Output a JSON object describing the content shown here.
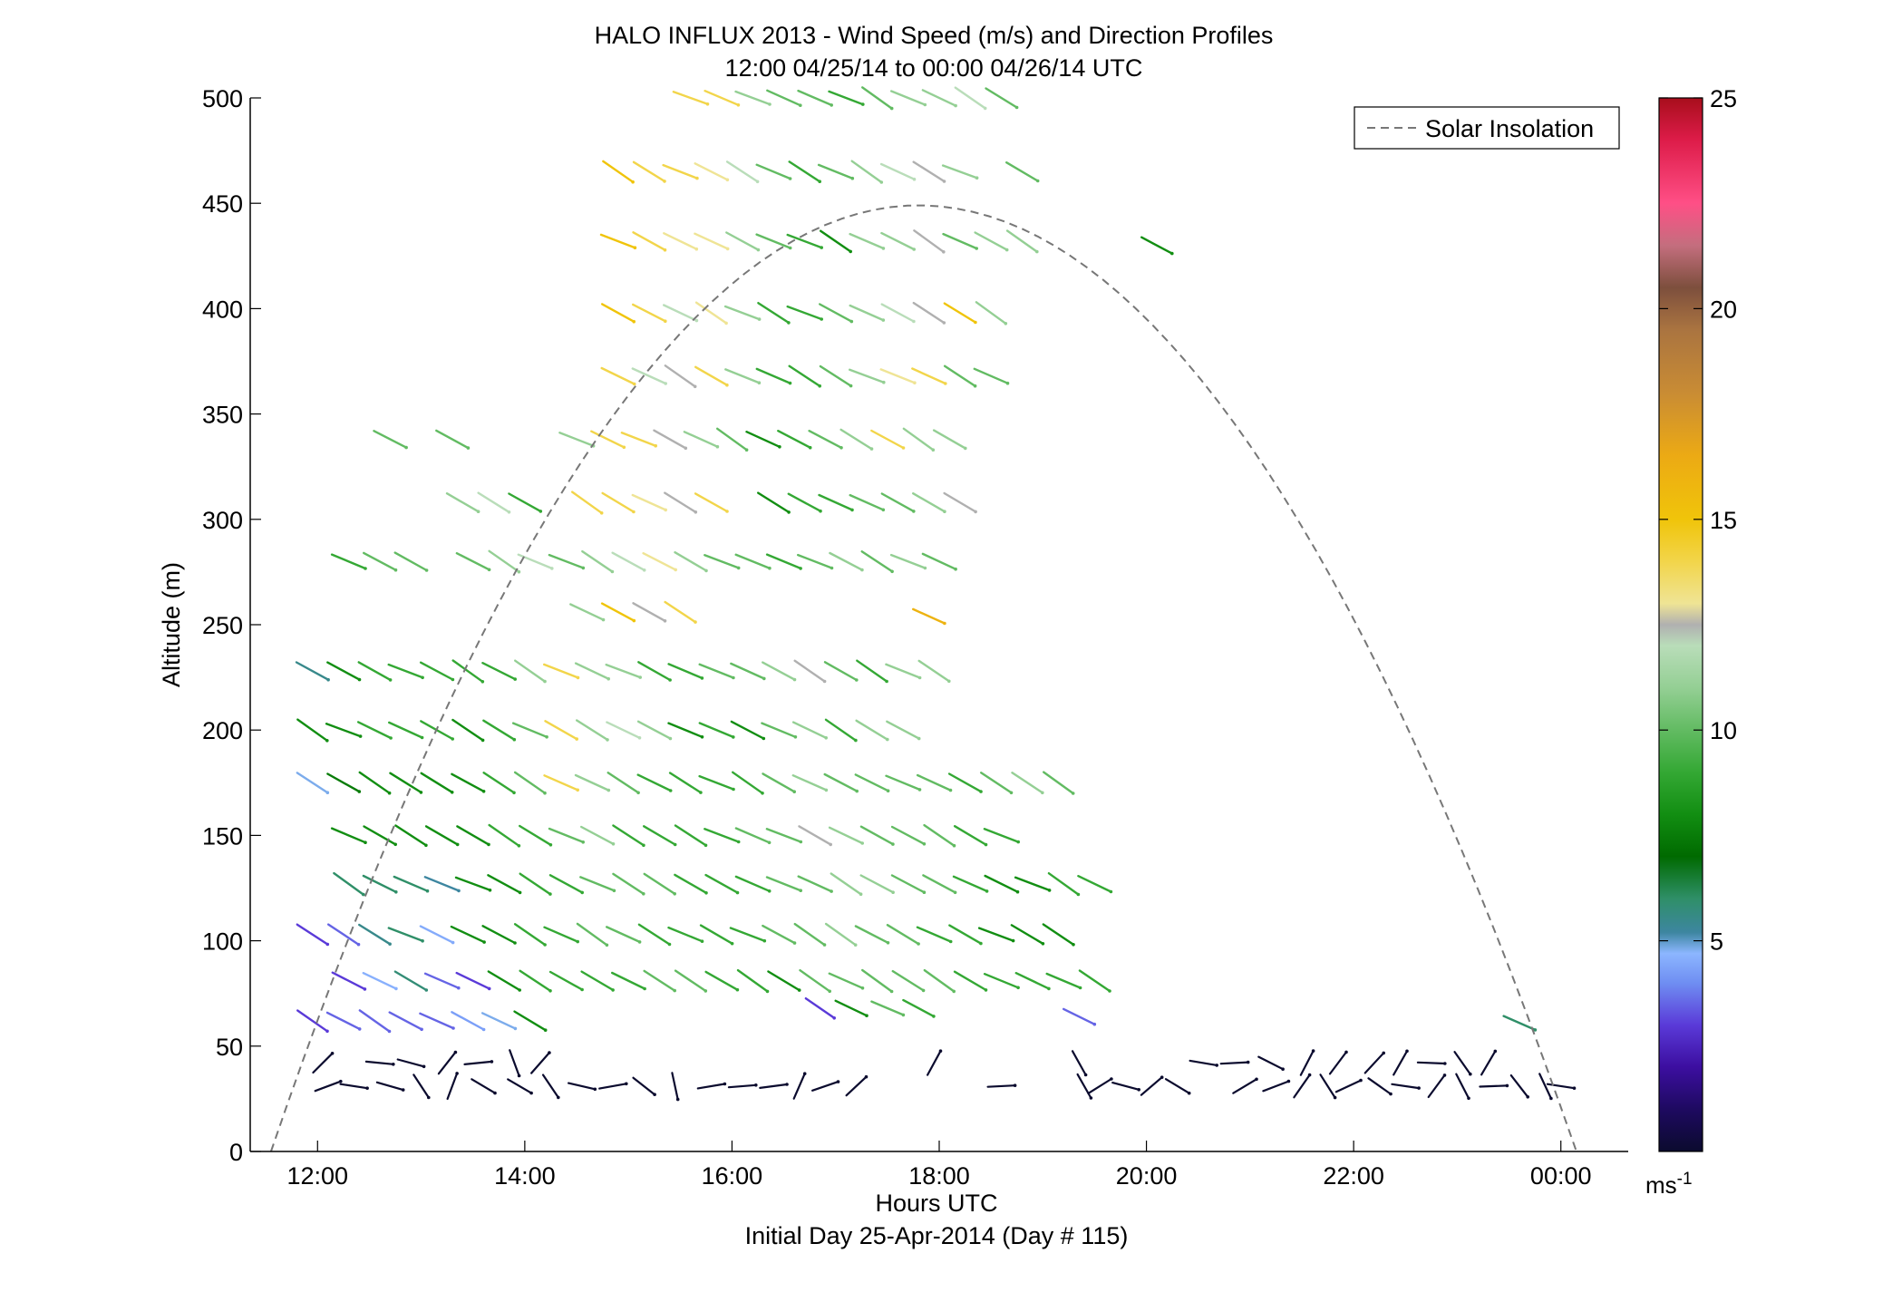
{
  "chart_data": {
    "type": "wind-barb-profile",
    "title": "HALO INFLUX 2013 - Wind Speed (m/s) and Direction Profiles",
    "subtitle": "12:00 04/25/14 to 00:00 04/26/14  UTC",
    "xlabel": "Hours UTC",
    "xlabel2": "Initial Day 25-Apr-2014 (Day # 115)",
    "ylabel": "Altitude (m)",
    "xlim": [
      11.35,
      24.65
    ],
    "ylim": [
      0,
      500
    ],
    "x_ticks": [
      {
        "v": 12,
        "label": "12:00"
      },
      {
        "v": 14,
        "label": "14:00"
      },
      {
        "v": 16,
        "label": "16:00"
      },
      {
        "v": 18,
        "label": "18:00"
      },
      {
        "v": 20,
        "label": "20:00"
      },
      {
        "v": 22,
        "label": "22:00"
      },
      {
        "v": 24,
        "label": "00:00"
      }
    ],
    "y_ticks": [
      0,
      50,
      100,
      150,
      200,
      250,
      300,
      350,
      400,
      450,
      500
    ],
    "legend": {
      "entries": [
        "Solar Insolation"
      ],
      "placement": "top-right",
      "line_style": "dashed",
      "color": "#777777"
    },
    "colorbar": {
      "ticks": [
        5,
        10,
        15,
        20,
        25
      ],
      "unit_label": "ms",
      "unit_exponent": "-1",
      "range": [
        0,
        25
      ],
      "stops": [
        {
          "v": 0,
          "c": "#0b0b2e"
        },
        {
          "v": 1,
          "c": "#1e0a60"
        },
        {
          "v": 2,
          "c": "#3c0ea0"
        },
        {
          "v": 3,
          "c": "#5a3ad8"
        },
        {
          "v": 4,
          "c": "#6f8ef2"
        },
        {
          "v": 4.7,
          "c": "#8cb6ff"
        },
        {
          "v": 5.2,
          "c": "#3d86a0"
        },
        {
          "v": 6,
          "c": "#2f8f68"
        },
        {
          "v": 7,
          "c": "#006a00"
        },
        {
          "v": 8,
          "c": "#128e12"
        },
        {
          "v": 9,
          "c": "#34a834"
        },
        {
          "v": 10,
          "c": "#62bb62"
        },
        {
          "v": 11,
          "c": "#94cf94"
        },
        {
          "v": 12,
          "c": "#b9ddb9"
        },
        {
          "v": 12.5,
          "c": "#b0b0b0"
        },
        {
          "v": 13,
          "c": "#efe495"
        },
        {
          "v": 14,
          "c": "#f2d54a"
        },
        {
          "v": 15,
          "c": "#f0c40a"
        },
        {
          "v": 16.5,
          "c": "#ecaa14"
        },
        {
          "v": 18,
          "c": "#c98c34"
        },
        {
          "v": 19.5,
          "c": "#aa7440"
        },
        {
          "v": 20.5,
          "c": "#7d4f3d"
        },
        {
          "v": 21.5,
          "c": "#c46e7e"
        },
        {
          "v": 22.5,
          "c": "#ff4f86"
        },
        {
          "v": 24,
          "c": "#dd1c49"
        },
        {
          "v": 25,
          "c": "#a80e1c"
        }
      ]
    },
    "solar_insolation": {
      "start_hour": 11.55,
      "end_hour": 24.15,
      "peak_hour": 17.8,
      "peak_altitude": 449
    },
    "upper_vectors": {
      "rows": [
        {
          "alt": 500,
          "t0": 15.6,
          "speeds": [
            14,
            14,
            11,
            10,
            10,
            9,
            10,
            11,
            11,
            12,
            10
          ]
        },
        {
          "alt": 465,
          "t0": 14.9,
          "speeds": [
            15,
            14,
            14,
            13,
            12,
            10,
            9,
            10,
            11,
            12,
            12.5,
            11,
            0,
            10
          ]
        },
        {
          "alt": 432,
          "t0": 14.9,
          "speeds": [
            15,
            14,
            13,
            13,
            11,
            10,
            9,
            8,
            11,
            11,
            12.5,
            10,
            11,
            11
          ]
        },
        {
          "alt": 398,
          "t0": 14.9,
          "speeds": [
            15,
            14,
            12,
            13,
            11,
            9,
            9,
            10,
            11,
            12,
            12.5,
            15,
            11
          ]
        },
        {
          "alt": 368,
          "t0": 14.9,
          "speeds": [
            14,
            12,
            12.5,
            14,
            11,
            9,
            9,
            10,
            11,
            13,
            14,
            10,
            10
          ]
        },
        {
          "alt": 338,
          "t0": 12.7,
          "speeds": [
            10,
            0,
            10,
            0,
            0,
            0,
            11,
            14,
            14,
            12.5,
            11,
            10,
            8,
            9,
            10,
            11,
            14,
            11,
            11
          ]
        },
        {
          "alt": 308,
          "t0": 13.4,
          "speeds": [
            11,
            12,
            9,
            0,
            14,
            14,
            13,
            12.5,
            14,
            0,
            8,
            9,
            9,
            10,
            10,
            11,
            12.5
          ]
        },
        {
          "alt": 280,
          "t0": 12.3,
          "speeds": [
            9,
            10,
            10,
            0,
            10,
            11,
            12,
            10,
            11,
            12,
            13,
            11,
            10,
            10,
            9,
            10,
            11,
            10,
            11,
            10
          ]
        },
        {
          "alt": 256,
          "t0": 14.6,
          "speeds": [
            11,
            15,
            12.5,
            14
          ]
        },
        {
          "alt": 228,
          "t0": 11.95,
          "speeds": [
            5.5,
            8,
            9,
            9,
            9,
            9,
            9,
            11,
            14,
            11,
            11,
            9,
            9,
            10,
            10,
            11,
            12.5,
            10,
            9,
            11,
            11
          ]
        },
        {
          "alt": 200,
          "t0": 11.95,
          "speeds": [
            8,
            8,
            9,
            9,
            9,
            8,
            9,
            10,
            14,
            11,
            12,
            11,
            8,
            9,
            8,
            10,
            11,
            9,
            11,
            11
          ]
        },
        {
          "alt": 175,
          "t0": 11.95,
          "speeds": [
            4.8,
            7.5,
            8,
            8,
            8,
            8,
            9,
            10,
            14,
            11,
            10,
            9,
            9,
            9,
            9,
            10,
            11,
            10,
            10,
            10,
            10,
            9,
            10,
            11,
            10
          ]
        },
        {
          "alt": 150,
          "t0": 12.3,
          "speeds": [
            8,
            8,
            8,
            8,
            8,
            9,
            9,
            10,
            11,
            9,
            9,
            9,
            9,
            10,
            10,
            12.5,
            11,
            10,
            10,
            10,
            9,
            9
          ]
        },
        {
          "alt": 127,
          "t0": 12.3,
          "speeds": [
            6,
            6,
            6,
            5.2,
            8,
            8,
            9,
            9,
            10,
            10,
            10,
            9,
            9,
            9,
            10,
            10,
            11,
            11,
            10,
            10,
            9,
            8,
            8,
            9,
            9
          ]
        },
        {
          "alt": 103,
          "t0": 11.95,
          "speeds": [
            3,
            3.5,
            5.5,
            6,
            4.5,
            8,
            8,
            9,
            9,
            10,
            10,
            9,
            9,
            9,
            9,
            10,
            10,
            11,
            10,
            10,
            9,
            9,
            8,
            8,
            8
          ]
        },
        {
          "alt": 81,
          "t0": 12.3,
          "speeds": [
            3,
            4.6,
            5.8,
            3.5,
            3,
            8,
            9,
            9,
            9,
            9,
            10,
            10,
            9,
            9,
            8,
            10,
            10,
            10,
            10,
            10,
            9,
            9,
            9,
            9,
            9
          ]
        },
        {
          "alt": 62,
          "t0": 11.95,
          "speeds": [
            3,
            3.5,
            3.5,
            3.5,
            3.5,
            4.3,
            4.8,
            8
          ]
        }
      ],
      "scattered": [
        {
          "t": 16.85,
          "alt": 68,
          "speed": 3
        },
        {
          "t": 17.15,
          "alt": 68,
          "speed": 8
        },
        {
          "t": 17.5,
          "alt": 68,
          "speed": 10
        },
        {
          "t": 17.8,
          "alt": 68,
          "speed": 9
        },
        {
          "t": 19.35,
          "alt": 64,
          "speed": 3.5
        },
        {
          "t": 23.6,
          "alt": 61,
          "speed": 6
        },
        {
          "t": 17.9,
          "alt": 254,
          "speed": 16
        },
        {
          "t": 20.1,
          "alt": 430,
          "speed": 8
        }
      ]
    },
    "surface_vectors": {
      "color": "#0b0b2e",
      "rows": [
        {
          "alt": 42,
          "times": [
            12.05,
            12.6,
            12.9,
            13.25,
            13.55,
            13.9,
            14.15,
            17.95,
            19.35,
            20.55,
            20.85,
            21.2,
            21.55,
            21.85,
            22.2,
            22.45,
            22.75,
            23.05,
            23.3
          ]
        },
        {
          "alt": 31,
          "times": [
            12.1,
            12.35,
            12.7,
            13.0,
            13.3,
            13.6,
            13.95,
            14.25,
            14.55,
            14.85,
            15.15,
            15.45,
            15.8,
            16.1,
            16.4,
            16.65,
            16.9,
            17.2,
            18.6,
            19.4,
            19.55,
            19.8,
            20.05,
            20.3,
            20.95,
            21.25,
            21.5,
            21.75,
            21.95,
            22.25,
            22.5,
            22.8,
            23.05,
            23.35,
            23.6,
            23.85,
            24.0
          ]
        }
      ]
    }
  }
}
